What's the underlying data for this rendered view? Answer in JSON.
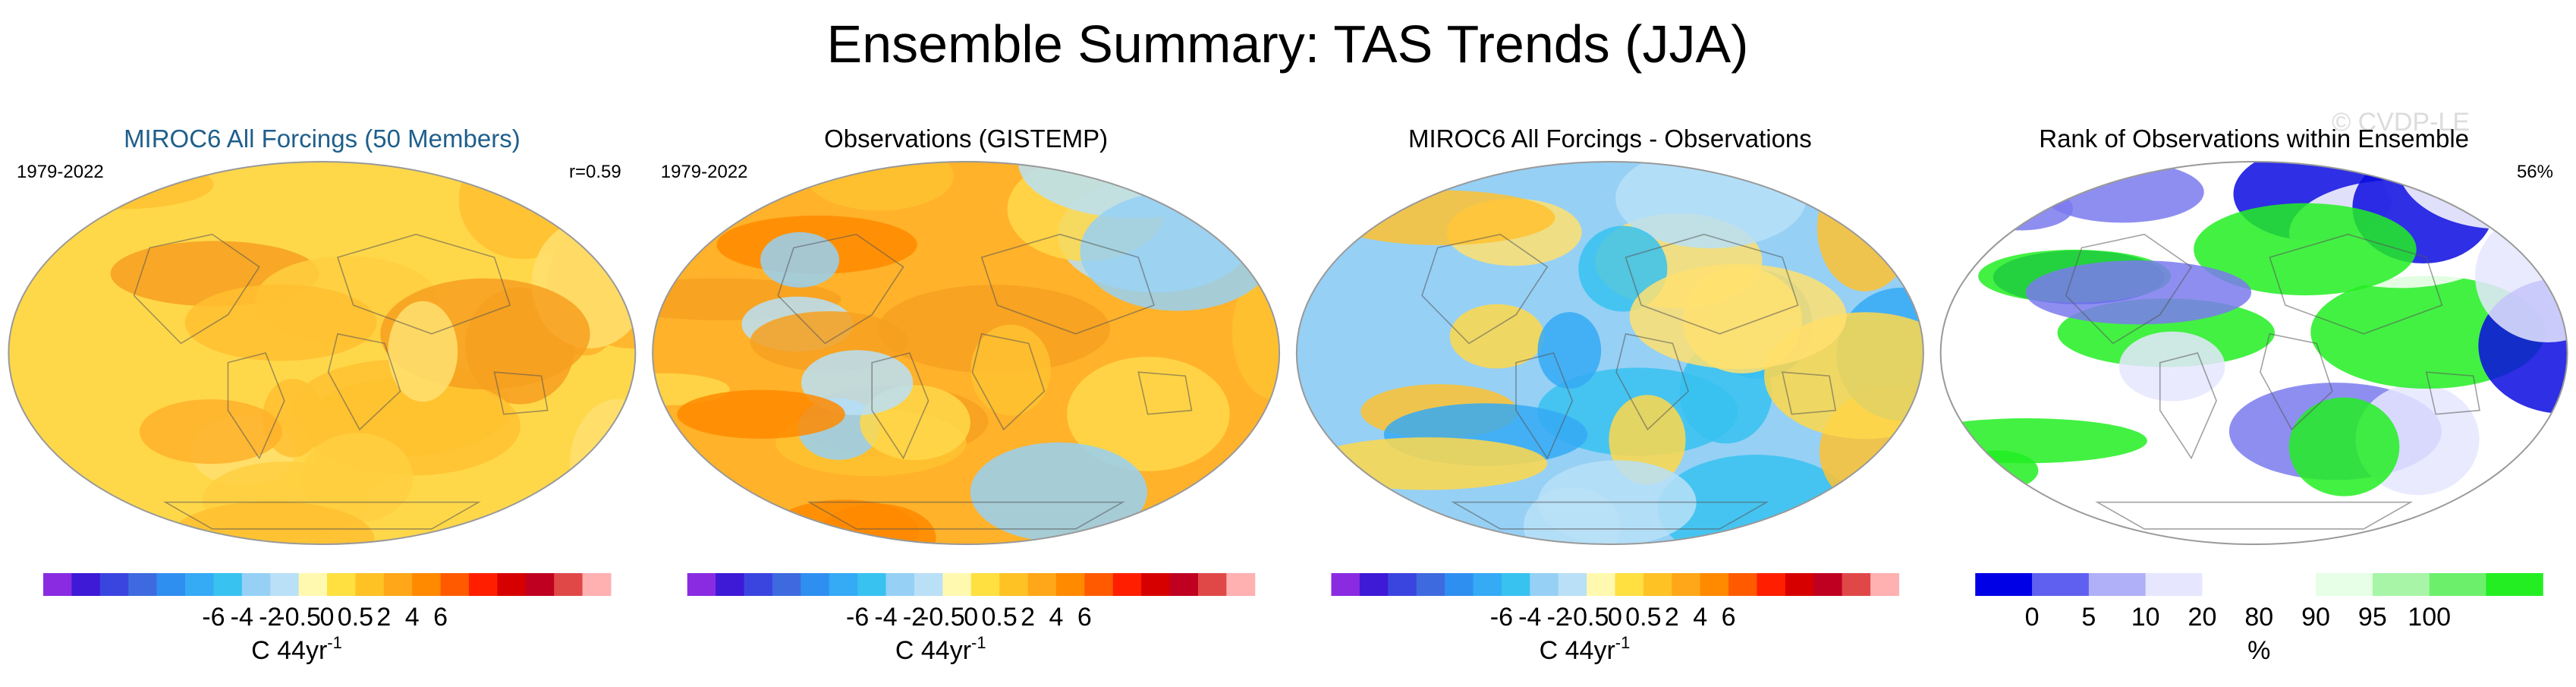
{
  "title": "Ensemble Summary: TAS Trends (JJA)",
  "watermark": "© CVDP-LE",
  "colors": {
    "title": "#000000",
    "model_title": "#1f5f8b",
    "land_outline": "#555555",
    "map_border": "#999999"
  },
  "panels": [
    {
      "title": "MIROC6 All Forcings (50 Members)",
      "title_color": "#1f5f8b",
      "period": "1979-2022",
      "stat": "r=0.59",
      "field_palette": [
        "#ffd84a",
        "#ffc230",
        "#ffb22a",
        "#f7a020",
        "#ffcf40",
        "#ffe070",
        "#ffc030"
      ],
      "colorbar": {
        "colors": [
          "#8a2be2",
          "#3e19d6",
          "#3a45e0",
          "#3e6ae0",
          "#2f8ff0",
          "#35aaf5",
          "#37c2f0",
          "#96d0f5",
          "#b9e0f7",
          "#fff9b0",
          "#ffe040",
          "#ffc225",
          "#ffa718",
          "#ff8a00",
          "#ff5a00",
          "#ff1e00",
          "#d60000",
          "#c00020",
          "#e04848",
          "#ffb0b0"
        ],
        "tick_labels": [
          "-6",
          "-4",
          "-2",
          "-0.5",
          "0",
          "0.5",
          "2",
          "4",
          "6"
        ],
        "units": "C 44yr",
        "units_sup": "-1"
      }
    },
    {
      "title": "Observations (GISTEMP)",
      "title_color": "#000000",
      "period": "1979-2022",
      "stat": "",
      "field_palette": [
        "#ffb22a",
        "#f7a020",
        "#ffc230",
        "#ffd84a",
        "#b9e0f7",
        "#96d0f5",
        "#ff8a00"
      ],
      "colorbar": {
        "colors": [
          "#8a2be2",
          "#3e19d6",
          "#3a45e0",
          "#3e6ae0",
          "#2f8ff0",
          "#35aaf5",
          "#37c2f0",
          "#96d0f5",
          "#b9e0f7",
          "#fff9b0",
          "#ffe040",
          "#ffc225",
          "#ffa718",
          "#ff8a00",
          "#ff5a00",
          "#ff1e00",
          "#d60000",
          "#c00020",
          "#e04848",
          "#ffb0b0"
        ],
        "tick_labels": [
          "-6",
          "-4",
          "-2",
          "-0.5",
          "0",
          "0.5",
          "2",
          "4",
          "6"
        ],
        "units": "C 44yr",
        "units_sup": "-1"
      }
    },
    {
      "title": "MIROC6 All Forcings - Observations",
      "title_color": "#000000",
      "period": "",
      "stat": "",
      "field_palette": [
        "#96d0f5",
        "#b9e0f7",
        "#37c2f0",
        "#ffe070",
        "#ffc230",
        "#35aaf5",
        "#ffd84a"
      ],
      "colorbar": {
        "colors": [
          "#8a2be2",
          "#3e19d6",
          "#3a45e0",
          "#3e6ae0",
          "#2f8ff0",
          "#35aaf5",
          "#37c2f0",
          "#96d0f5",
          "#b9e0f7",
          "#fff9b0",
          "#ffe040",
          "#ffc225",
          "#ffa718",
          "#ff8a00",
          "#ff5a00",
          "#ff1e00",
          "#d60000",
          "#c00020",
          "#e04848",
          "#ffb0b0"
        ],
        "tick_labels": [
          "-6",
          "-4",
          "-2",
          "-0.5",
          "0",
          "0.5",
          "2",
          "4",
          "6"
        ],
        "units": "C 44yr",
        "units_sup": "-1"
      }
    },
    {
      "title": "Rank of Observations within Ensemble",
      "title_color": "#000000",
      "period": "",
      "stat": "56%",
      "field_palette": [
        "#ffffff",
        "#22ee22",
        "#ffffff",
        "#0a0ae0",
        "#e6e6ff",
        "#22ee22",
        "#7a7aee"
      ],
      "colorbar": {
        "colors": [
          "#0000e6",
          "#6060f0",
          "#b0b0f8",
          "#e6e6ff",
          "#ffffff",
          "#ffffff",
          "#e6ffe6",
          "#a8f5a8",
          "#6cf06c",
          "#22ee22"
        ],
        "tick_labels": [
          "0",
          "5",
          "10",
          "20",
          "80",
          "90",
          "95",
          "100"
        ],
        "units": "%",
        "units_sup": ""
      }
    }
  ],
  "chart_data": {
    "type": "heatmap",
    "title": "Ensemble Summary: TAS Trends (JJA)",
    "season": "JJA",
    "variable": "TAS",
    "panels": [
      {
        "title": "MIROC6 All Forcings (50 Members)",
        "period": "1979-2022",
        "pattern_correlation": 0.59,
        "units": "C 44yr-1",
        "colorbar_ticks": [
          -6,
          -4,
          -2,
          -0.5,
          0,
          0.5,
          2,
          4,
          6
        ]
      },
      {
        "title": "Observations (GISTEMP)",
        "period": "1979-2022",
        "units": "C 44yr-1",
        "colorbar_ticks": [
          -6,
          -4,
          -2,
          -0.5,
          0,
          0.5,
          2,
          4,
          6
        ]
      },
      {
        "title": "MIROC6 All Forcings - Observations",
        "units": "C 44yr-1",
        "colorbar_ticks": [
          -6,
          -4,
          -2,
          -0.5,
          0,
          0.5,
          2,
          4,
          6
        ]
      },
      {
        "title": "Rank of Observations within Ensemble",
        "area_within_10_90_percent": 56,
        "units": "%",
        "colorbar_ticks": [
          0,
          5,
          10,
          20,
          80,
          90,
          95,
          100
        ]
      }
    ]
  }
}
